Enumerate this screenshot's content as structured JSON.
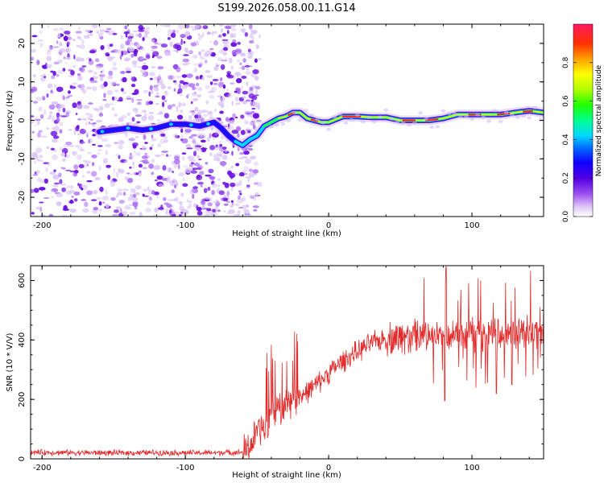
{
  "title": "S199.2026.058.00.11.G14",
  "colors": {
    "snr_line": "#e32a2a",
    "axis": "#000000",
    "purple_high": "#6a11e0",
    "purple_low": "#d9c3f5"
  },
  "chart_data": [
    {
      "type": "heatmap",
      "name": "spectrogram",
      "xlabel": "Height of straight line (km)",
      "ylabel": "Frequency (Hz)",
      "xlim": [
        -208,
        150
      ],
      "ylim": [
        -25,
        25
      ],
      "xticks": [
        -200,
        -100,
        0,
        100
      ],
      "xtick_labels": [
        "-200",
        "-100",
        "0",
        "100"
      ],
      "yticks": [
        -20,
        -10,
        0,
        10,
        20
      ],
      "ytick_labels": [
        "-20",
        "-10",
        "0",
        "10",
        "20"
      ],
      "noise_region_x": [
        -208,
        -60
      ],
      "ridge": [
        {
          "x": -160,
          "y": -3
        },
        {
          "x": -150,
          "y": -2.5
        },
        {
          "x": -140,
          "y": -2
        },
        {
          "x": -130,
          "y": -2.5
        },
        {
          "x": -120,
          "y": -2
        },
        {
          "x": -110,
          "y": -1
        },
        {
          "x": -100,
          "y": -1
        },
        {
          "x": -90,
          "y": -1.5
        },
        {
          "x": -80,
          "y": -0.5
        },
        {
          "x": -75,
          "y": -2
        },
        {
          "x": -70,
          "y": -4
        },
        {
          "x": -65,
          "y": -5.5
        },
        {
          "x": -60,
          "y": -6.5
        },
        {
          "x": -55,
          "y": -5
        },
        {
          "x": -50,
          "y": -4
        },
        {
          "x": -45,
          "y": -1.5
        },
        {
          "x": -40,
          "y": -0.5
        },
        {
          "x": -35,
          "y": 0.5
        },
        {
          "x": -30,
          "y": 1
        },
        {
          "x": -25,
          "y": 2
        },
        {
          "x": -20,
          "y": 2
        },
        {
          "x": -15,
          "y": 0.5
        },
        {
          "x": -10,
          "y": 0
        },
        {
          "x": -5,
          "y": -0.5
        },
        {
          "x": 0,
          "y": -0.5
        },
        {
          "x": 10,
          "y": 1
        },
        {
          "x": 20,
          "y": 1
        },
        {
          "x": 30,
          "y": 0.8
        },
        {
          "x": 40,
          "y": 0.8
        },
        {
          "x": 50,
          "y": 0
        },
        {
          "x": 60,
          "y": 0
        },
        {
          "x": 70,
          "y": 0
        },
        {
          "x": 80,
          "y": 0.5
        },
        {
          "x": 90,
          "y": 1.5
        },
        {
          "x": 100,
          "y": 1.5
        },
        {
          "x": 110,
          "y": 1.5
        },
        {
          "x": 120,
          "y": 1.5
        },
        {
          "x": 130,
          "y": 2
        },
        {
          "x": 140,
          "y": 2.5
        },
        {
          "x": 150,
          "y": 2
        }
      ],
      "colorbar": {
        "label": "Normalized spectral amplitude",
        "range": [
          0,
          1
        ],
        "ticks": [
          0.0,
          0.2,
          0.4,
          0.6,
          0.8
        ],
        "tick_labels": [
          "0.0",
          "0.2",
          "0.4",
          "0.6",
          "0.8"
        ]
      }
    },
    {
      "type": "line",
      "name": "snr",
      "xlabel": "Height of straight line (km)",
      "ylabel": "SNR (10 * V/V)",
      "xlim": [
        -208,
        150
      ],
      "ylim": [
        0,
        650
      ],
      "xticks": [
        -200,
        -100,
        0,
        100
      ],
      "xtick_labels": [
        "-200",
        "-100",
        "0",
        "100"
      ],
      "yticks": [
        0,
        200,
        400,
        600
      ],
      "ytick_labels": [
        "0",
        "200",
        "400",
        "600"
      ],
      "series": [
        {
          "name": "SNR",
          "x": [
            -208,
            -180,
            -150,
            -120,
            -90,
            -60,
            -55,
            -50,
            -45,
            -40,
            -35,
            -30,
            -25,
            -20,
            -15,
            -10,
            -5,
            0,
            10,
            20,
            30,
            40,
            50,
            60,
            70,
            80,
            90,
            100,
            110,
            120,
            130,
            140,
            150
          ],
          "y": [
            22,
            21,
            20,
            21,
            20,
            22,
            40,
            90,
            110,
            140,
            165,
            180,
            195,
            210,
            225,
            245,
            265,
            290,
            330,
            360,
            390,
            405,
            410,
            410,
            415,
            420,
            420,
            420,
            415,
            420,
            420,
            425,
            425
          ]
        }
      ],
      "max_point": {
        "x": 82,
        "y": 645
      },
      "min_dips": [
        {
          "x": 81,
          "y": 195
        },
        {
          "x": 117,
          "y": 220
        },
        {
          "x": 128,
          "y": 250
        }
      ]
    }
  ]
}
